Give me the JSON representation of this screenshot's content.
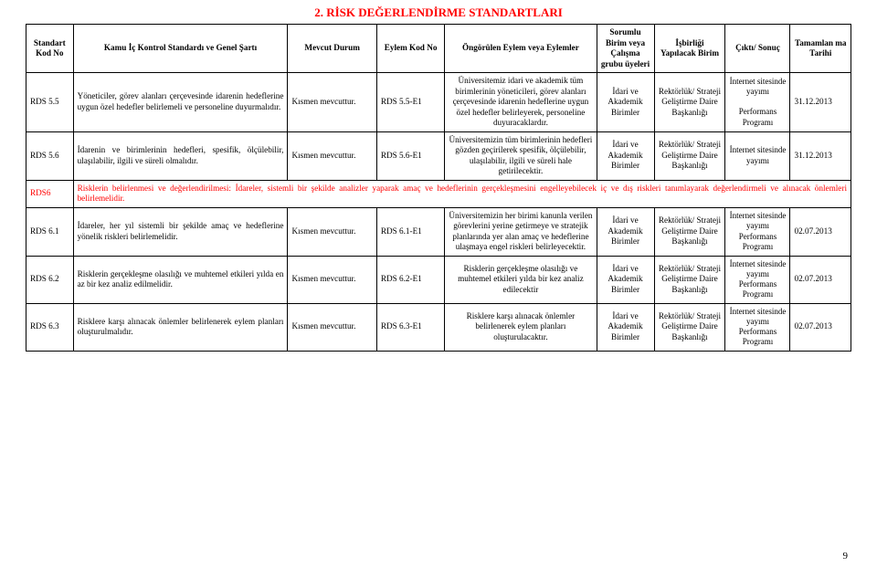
{
  "title": "2. RİSK DEĞERLENDİRME STANDARTLARI",
  "headers": {
    "c1": "Standart Kod No",
    "c2": "Kamu İç Kontrol Standardı ve Genel Şartı",
    "c3": "Mevcut Durum",
    "c4": "Eylem Kod No",
    "c5": "Öngörülen Eylem veya Eylemler",
    "c6": "Sorumlu Birim veya Çalışma grubu üyeleri",
    "c7": "İşbirliği Yapılacak Birim",
    "c8": "Çıktı/ Sonuç",
    "c9": "Tamamlan ma Tarihi"
  },
  "rows": [
    {
      "kod": "RDS 5.5",
      "standart": "Yöneticiler, görev alanları çerçevesinde idarenin hedeflerine uygun özel hedefler belirlemeli ve personeline duyurmalıdır.",
      "durum": "Kısmen mevcuttur.",
      "eylemKod": "RDS 5.5-E1",
      "eylem": "Üniversitemiz idari ve akademik tüm birimlerinin yöneticileri, görev alanları çerçevesinde idarenin hedeflerine uygun özel hedefler belirleyerek, personeline duyuracaklardır.",
      "sorumlu": "İdari ve Akademik Birimler",
      "isbirligi": "Rektörlük/ Strateji Geliştirme Daire Başkanlığı",
      "cikti": "İnternet sitesinde yayımı\n\nPerformans Programı",
      "tarih": "31.12.2013"
    },
    {
      "kod": "RDS 5.6",
      "standart": "İdarenin ve birimlerinin hedefleri, spesifik, ölçülebilir, ulaşılabilir, ilgili ve süreli olmalıdır.",
      "durum": "Kısmen mevcuttur.",
      "eylemKod": "RDS 5.6-E1",
      "eylem": "Üniversitemizin tüm birimlerinin hedefleri gözden geçirilerek spesifik, ölçülebilir, ulaşılabilir, ilgili ve süreli hale getirilecektir.",
      "sorumlu": "İdari ve Akademik Birimler",
      "isbirligi": "Rektörlük/ Strateji Geliştirme Daire Başkanlığı",
      "cikti": "İnternet sitesinde yayımı",
      "tarih": "31.12.2013"
    }
  ],
  "rds6": {
    "kod": "RDS6",
    "text": "Risklerin belirlenmesi ve değerlendirilmesi: İdareler, sistemli bir şekilde analizler yaparak amaç ve hedeflerinin gerçekleşmesini engelleyebilecek iç ve dış riskleri tanımlayarak değerlendirmeli ve alınacak önlemleri belirlemelidir."
  },
  "rows2": [
    {
      "kod": "RDS 6.1",
      "standart": "İdareler, her yıl sistemli bir şekilde amaç ve hedeflerine yönelik riskleri belirlemelidir.",
      "durum": "Kısmen mevcuttur.",
      "eylemKod": "RDS 6.1-E1",
      "eylem": "Üniversitemizin her birimi kanunla verilen görevlerini yerine getirmeye ve stratejik planlarında yer alan amaç ve hedeflerine ulaşmaya engel riskleri belirleyecektir.",
      "sorumlu": "İdari ve Akademik Birimler",
      "isbirligi": "Rektörlük/ Strateji Geliştirme Daire Başkanlığı",
      "cikti": "İnternet sitesinde yayımı\nPerformans Programı",
      "tarih": "02.07.2013"
    },
    {
      "kod": "RDS 6.2",
      "standart": "Risklerin gerçekleşme olasılığı ve muhtemel etkileri yılda en az bir kez analiz edilmelidir.",
      "durum": "Kısmen mevcuttur.",
      "eylemKod": "RDS 6.2-E1",
      "eylem": "Risklerin gerçekleşme olasılığı ve muhtemel etkileri yılda bir kez analiz edilecektir",
      "sorumlu": "İdari ve Akademik Birimler",
      "isbirligi": "Rektörlük/ Strateji Geliştirme Daire Başkanlığı",
      "cikti": "İnternet sitesinde yayımı\nPerformans Programı",
      "tarih": "02.07.2013"
    },
    {
      "kod": "RDS 6.3",
      "standart": "Risklere karşı alınacak önlemler belirlenerek eylem planları oluşturulmalıdır.",
      "durum": "Kısmen mevcuttur.",
      "eylemKod": "RDS 6.3-E1",
      "eylem": "Risklere karşı alınacak önlemler belirlenerek eylem planları oluşturulacaktır.",
      "sorumlu": "İdari ve Akademik Birimler",
      "isbirligi": "Rektörlük/ Strateji Geliştirme Daire Başkanlığı",
      "cikti": "İnternet sitesinde yayımı\nPerformans Programı",
      "tarih": "02.07.2013"
    }
  ],
  "pageNumber": "9",
  "colors": {
    "accent": "#ff0000",
    "border": "#000000",
    "text": "#000000",
    "bg": "#ffffff"
  }
}
